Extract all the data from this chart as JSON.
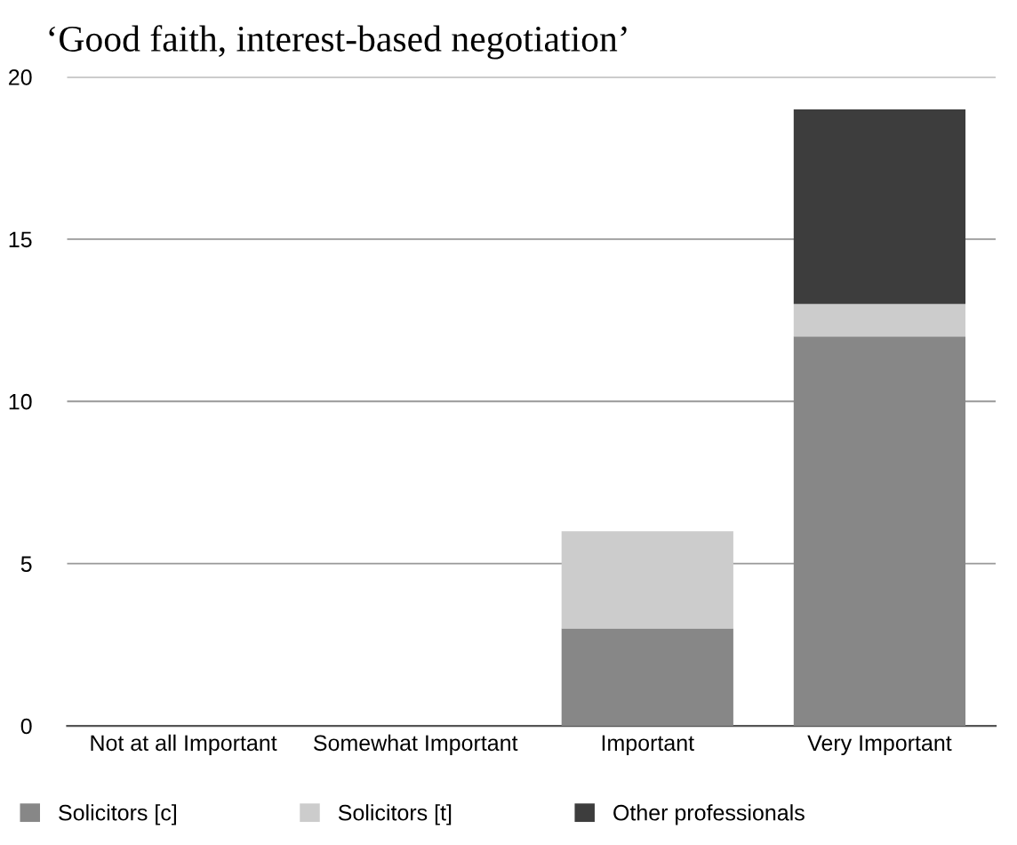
{
  "chart_data": {
    "type": "bar",
    "title": "‘Good faith, interest-based negotiation’",
    "categories": [
      "Not at all Important",
      "Somewhat Important",
      "Important",
      "Very Important"
    ],
    "stacked": true,
    "series": [
      {
        "name": "Solicitors [c]",
        "color": "#878787",
        "values": [
          0,
          0,
          3,
          12
        ]
      },
      {
        "name": "Solicitors [t]",
        "color": "#cccccc",
        "values": [
          0,
          0,
          3,
          1
        ]
      },
      {
        "name": "Other professionals",
        "color": "#3d3d3d",
        "values": [
          0,
          0,
          0,
          6
        ]
      }
    ],
    "ylim": [
      0,
      20
    ],
    "yticks": [
      0,
      5,
      10,
      15,
      20
    ],
    "grid": "y",
    "legend": "bottom"
  }
}
